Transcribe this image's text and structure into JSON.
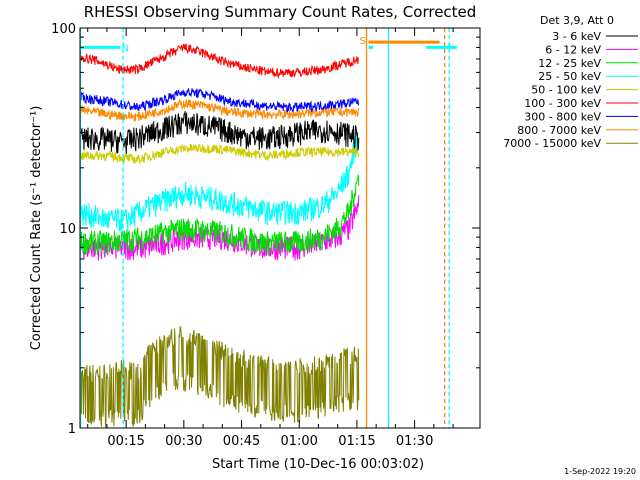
{
  "chart_data": {
    "type": "line",
    "title": "RHESSI Observing Summary Count Rates, Corrected",
    "xlabel": "Start Time (10-Dec-16 00:03:02)",
    "ylabel": "Corrected Count Rate (s⁻¹ detector⁻¹)",
    "y_scale": "log",
    "ylim": [
      1,
      100
    ],
    "xlim_minutes": [
      3.0,
      107.0
    ],
    "x_ticks": [
      {
        "label": "00:15",
        "minute": 15
      },
      {
        "label": "00:30",
        "minute": 30
      },
      {
        "label": "00:45",
        "minute": 45
      },
      {
        "label": "01:00",
        "minute": 60
      },
      {
        "label": "01:15",
        "minute": 75
      },
      {
        "label": "01:30",
        "minute": 90
      }
    ],
    "y_ticks": [
      {
        "label": "1",
        "value": 1
      },
      {
        "label": "10",
        "value": 10
      },
      {
        "label": "100",
        "value": 100
      }
    ],
    "legend_title": "Det 3,9, Att 0",
    "legend_position": "right",
    "series": [
      {
        "name": "3 - 6 keV",
        "color": "#000000",
        "x": [
          3,
          8,
          15,
          22,
          30,
          38,
          45,
          52,
          60,
          67,
          71,
          74,
          75.5
        ],
        "values": [
          28,
          28,
          27,
          30,
          34,
          32,
          29,
          28,
          30,
          31,
          30,
          29,
          28
        ]
      },
      {
        "name": "6 - 12 keV",
        "color": "#ff00ff",
        "x": [
          3,
          10,
          20,
          30,
          40,
          50,
          60,
          66,
          70,
          73,
          75.5
        ],
        "values": [
          8,
          8,
          8,
          9,
          9,
          8,
          8,
          8.5,
          9,
          10,
          13
        ]
      },
      {
        "name": "12 - 25 keV",
        "color": "#00dd00",
        "x": [
          3,
          10,
          20,
          30,
          40,
          50,
          60,
          66,
          70,
          73,
          75.5
        ],
        "values": [
          8.5,
          8.5,
          9,
          10,
          9.5,
          8.5,
          8.5,
          9,
          10,
          12,
          18
        ]
      },
      {
        "name": "25 - 50 keV",
        "color": "#00ffff",
        "x": [
          3,
          10,
          15,
          22,
          30,
          38,
          45,
          52,
          60,
          66,
          70,
          73,
          75.5
        ],
        "values": [
          12,
          11,
          11,
          13,
          15,
          14,
          13,
          12,
          12,
          13,
          15,
          19,
          30
        ]
      },
      {
        "name": "50 - 100 keV",
        "color": "#cccc00",
        "x": [
          3,
          10,
          18,
          25,
          30,
          38,
          45,
          52,
          60,
          67,
          72,
          75.5
        ],
        "values": [
          23,
          23,
          22,
          24,
          25,
          25,
          24,
          23,
          24,
          24,
          24,
          24
        ]
      },
      {
        "name": "100 - 300 keV",
        "color": "#ff0000",
        "x": [
          3,
          8,
          13,
          18,
          25,
          30,
          35,
          40,
          45,
          52,
          60,
          66,
          71,
          75.5
        ],
        "values": [
          72,
          68,
          62,
          62,
          72,
          80,
          75,
          68,
          64,
          60,
          60,
          62,
          66,
          70
        ]
      },
      {
        "name": "300 - 800 keV",
        "color": "#0000ff",
        "x": [
          3,
          10,
          18,
          25,
          30,
          35,
          42,
          50,
          58,
          66,
          72,
          75.5
        ],
        "values": [
          45,
          43,
          40,
          44,
          48,
          47,
          43,
          41,
          40,
          41,
          42,
          43
        ]
      },
      {
        "name": "800 - 7000 keV",
        "color": "#ff8800",
        "x": [
          3,
          10,
          18,
          25,
          30,
          35,
          42,
          50,
          58,
          66,
          72,
          75.5
        ],
        "values": [
          39,
          37,
          36,
          39,
          42,
          41,
          38,
          37,
          37,
          38,
          38,
          38
        ]
      },
      {
        "name": "7000 - 15000 keV",
        "color": "#808000",
        "x": [
          3,
          10,
          15,
          18,
          22,
          28,
          35,
          42,
          50,
          58,
          66,
          72,
          75.5
        ],
        "values": [
          1.8,
          1.8,
          1.9,
          1.8,
          2.4,
          2.8,
          2.6,
          2.2,
          2.0,
          1.9,
          2.0,
          2.2,
          2.2
        ]
      }
    ],
    "vertical_lines": [
      {
        "minute": 3.1,
        "color": "#00ffff",
        "style": "solid"
      },
      {
        "minute": 14.2,
        "color": "#00ffff",
        "style": "dashed"
      },
      {
        "minute": 77.5,
        "color": "#ff8800",
        "style": "solid"
      },
      {
        "minute": 83.2,
        "color": "#00ffff",
        "style": "solid"
      },
      {
        "minute": 97.8,
        "color": "#ff8800",
        "style": "dashed"
      },
      {
        "minute": 99.0,
        "color": "#00ffff",
        "style": "dashed"
      }
    ],
    "flag_bars": [
      {
        "color": "#00ffff",
        "y": 80,
        "from": 3.2,
        "to": 13.5
      },
      {
        "color": "#ff8800",
        "y": 85,
        "from": 78.0,
        "to": 96.5
      },
      {
        "color": "#00ffff",
        "y": 80,
        "from": 78.0,
        "to": 79.2
      },
      {
        "color": "#00ffff",
        "y": 80,
        "from": 93.0,
        "to": 101.0
      }
    ],
    "annotations": [
      {
        "text": "S",
        "color": "#ff8800",
        "minute": 76.5,
        "y": 87
      },
      {
        "text": "N",
        "color": "#00ffff",
        "minute": 14.8,
        "y": 80
      }
    ]
  },
  "footer": {
    "timestamp": "1-Sep-2022 19:20"
  }
}
